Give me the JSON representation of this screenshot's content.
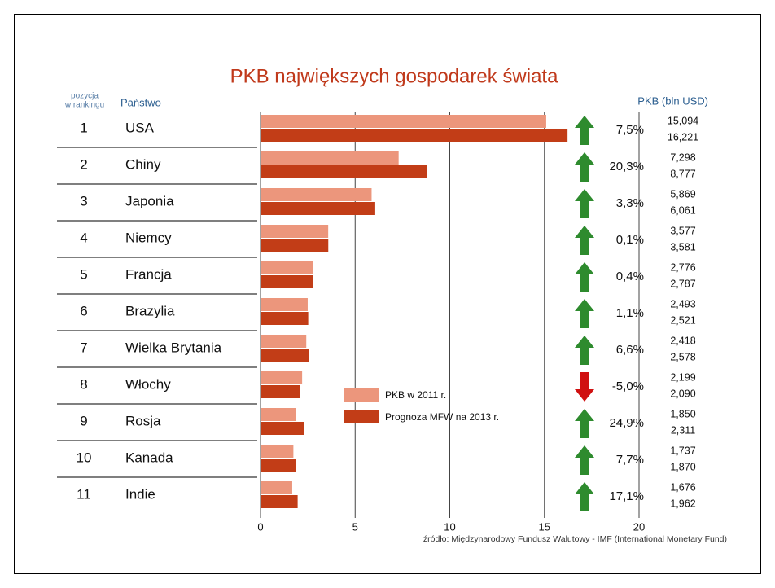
{
  "chart_data": {
    "type": "bar",
    "title": "PKB największych gospodarek świata",
    "rank_header": [
      "pozycja",
      "w rankingu"
    ],
    "country_header": "Państwo",
    "value_header": "PKB (bln USD)",
    "source": "źródło: Międzynarodowy Fundusz Walutowy - IMF (International Monetary Fund)",
    "ranks": [
      1,
      2,
      3,
      4,
      5,
      6,
      7,
      8,
      9,
      10,
      11
    ],
    "categories": [
      "USA",
      "Chiny",
      "Japonia",
      "Niemcy",
      "Francja",
      "Brazylia",
      "Wielka Brytania",
      "Włochy",
      "Rosja",
      "Kanada",
      "Indie"
    ],
    "series": [
      {
        "name": "PKB w 2011 r.",
        "color": "#ec967c",
        "values": [
          15.094,
          7.298,
          5.869,
          3.577,
          2.776,
          2.493,
          2.418,
          2.199,
          1.85,
          1.737,
          1.676
        ],
        "value_labels": [
          "15,094",
          "7,298",
          "5,869",
          "3,577",
          "2,776",
          "2,493",
          "2,418",
          "2,199",
          "1,850",
          "1,737",
          "1,676"
        ]
      },
      {
        "name": "Prognoza MFW na 2013 r.",
        "color": "#c23d17",
        "values": [
          16.221,
          8.777,
          6.061,
          3.581,
          2.787,
          2.521,
          2.578,
          2.09,
          2.311,
          1.87,
          1.962
        ],
        "value_labels": [
          "16,221",
          "8,777",
          "6,061",
          "3,581",
          "2,787",
          "2,521",
          "2,578",
          "2,090",
          "2,311",
          "1,870",
          "1,962"
        ]
      }
    ],
    "changes": [
      7.5,
      20.3,
      3.3,
      0.1,
      0.4,
      1.1,
      6.6,
      -5.0,
      24.9,
      7.7,
      17.1
    ],
    "change_labels": [
      "7,5%",
      "20,3%",
      "3,3%",
      "0,1%",
      "0,4%",
      "1,1%",
      "6,6%",
      "-5,0%",
      "24,9%",
      "7,7%",
      "17,1%"
    ],
    "xlim": [
      0,
      20
    ],
    "xticks": [
      0,
      5,
      10,
      15,
      20
    ],
    "grid": true,
    "legend": "center"
  }
}
